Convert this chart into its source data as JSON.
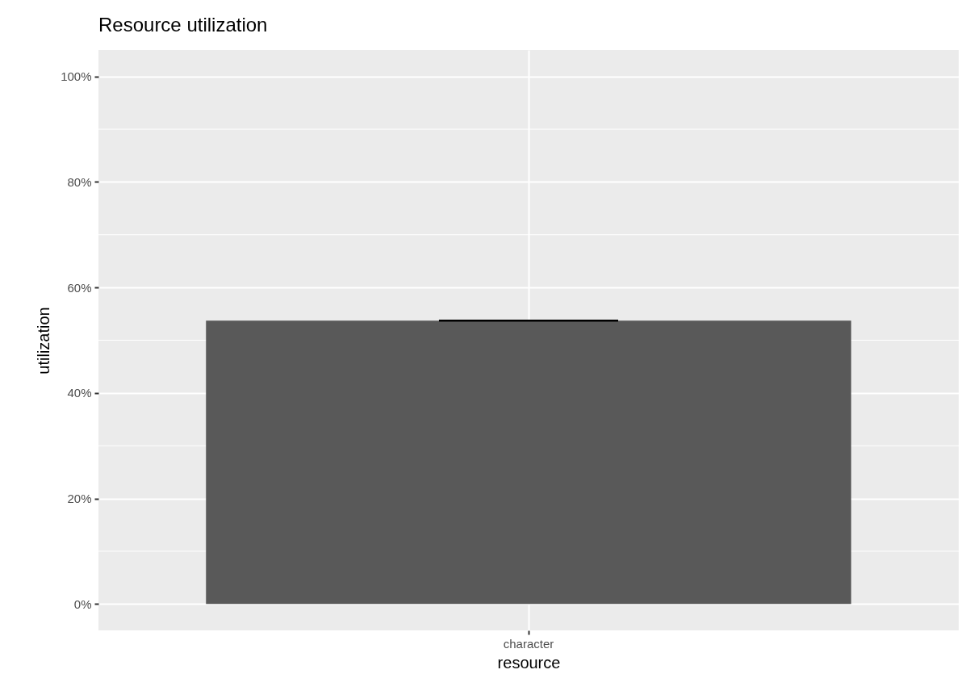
{
  "chart_data": {
    "type": "bar",
    "title": "Resource utilization",
    "xlabel": "resource",
    "ylabel": "utilization",
    "categories": [
      "character"
    ],
    "values": [
      53.7
    ],
    "errors": [
      0
    ],
    "color": "#595959",
    "ylim": [
      -5,
      105
    ],
    "yticks": [
      {
        "value": 0,
        "label": "0%"
      },
      {
        "value": 20,
        "label": "20%"
      },
      {
        "value": 40,
        "label": "40%"
      },
      {
        "value": 60,
        "label": "60%"
      },
      {
        "value": 80,
        "label": "80%"
      },
      {
        "value": 100,
        "label": "100%"
      }
    ],
    "grid": true
  }
}
